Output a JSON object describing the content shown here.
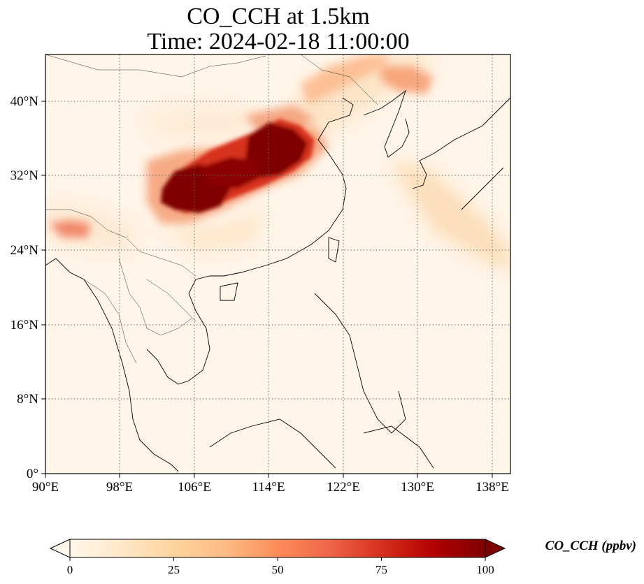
{
  "title": {
    "line1": "CO_CCH at 1.5km",
    "line2": "Time: 2024-02-18 11:00:00"
  },
  "map": {
    "lon_range": [
      90,
      140
    ],
    "lat_range": [
      0,
      45
    ],
    "lon_ticks": [
      "90°E",
      "98°E",
      "106°E",
      "114°E",
      "122°E",
      "130°E",
      "138°E"
    ],
    "lat_ticks": [
      "0°",
      "8°N",
      "16°N",
      "24°N",
      "32°N",
      "40°N"
    ],
    "gridlines": true,
    "colormap": "OrRd"
  },
  "colorbar": {
    "label": "CO_CCH (ppbv)",
    "min": 0,
    "max": 100,
    "ticks": [
      "0",
      "25",
      "50",
      "75",
      "100"
    ],
    "extend": "both",
    "colors": [
      "#fff7ec",
      "#fee8c8",
      "#fdd49e",
      "#fdbb84",
      "#fc8d59",
      "#ef6548",
      "#d7301f",
      "#b30000",
      "#7f0000"
    ]
  }
}
